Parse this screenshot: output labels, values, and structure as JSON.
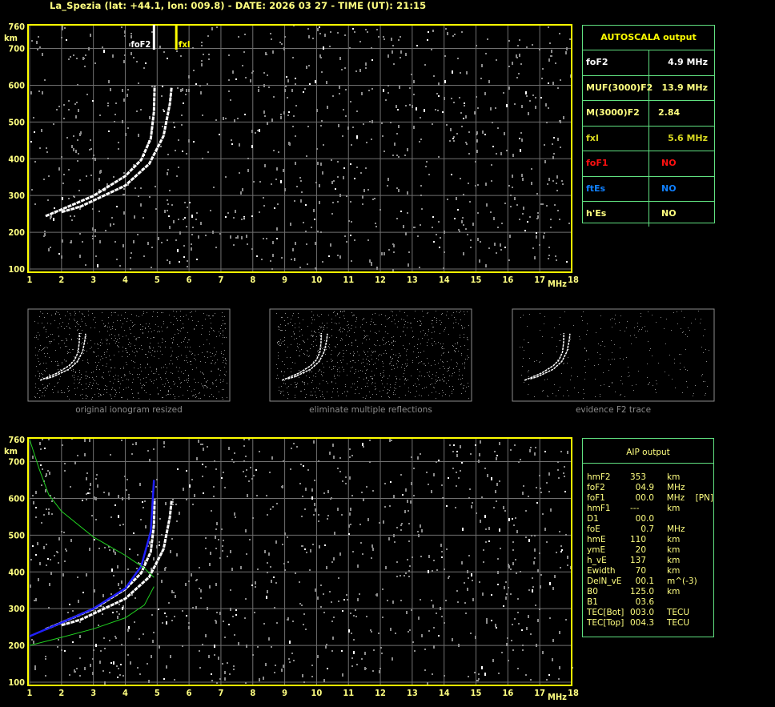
{
  "header": {
    "title": "La_Spezia (lat: +44.1, lon: 009.8) - DATE: 2026 03 27 - TIME (UT): 21:15"
  },
  "axes": {
    "x_unit": "MHz",
    "y_unit": "km",
    "x_ticks": [
      "1",
      "2",
      "3",
      "4",
      "5",
      "6",
      "7",
      "8",
      "9",
      "10",
      "11",
      "12",
      "13",
      "14",
      "15",
      "16",
      "17",
      "18"
    ],
    "y_ticks": [
      "760",
      "700",
      "600",
      "500",
      "400",
      "300",
      "200",
      "100"
    ],
    "x_range": [
      1,
      18
    ],
    "y_range": [
      100,
      760
    ]
  },
  "top_ionogram": {
    "markers": [
      {
        "label": "foF2",
        "freq": 4.9,
        "color": "#ffffff"
      },
      {
        "label": "fxI",
        "freq": 5.6,
        "color": "#ffff00"
      }
    ],
    "o_trace": [
      [
        1.5,
        244
      ],
      [
        2.0,
        262
      ],
      [
        3.0,
        299
      ],
      [
        4.0,
        353
      ],
      [
        4.5,
        397
      ],
      [
        4.8,
        455
      ],
      [
        4.9,
        528
      ],
      [
        4.92,
        598
      ]
    ],
    "x_trace": [
      [
        2.0,
        255
      ],
      [
        2.6,
        270
      ],
      [
        4.0,
        327
      ],
      [
        4.75,
        386
      ],
      [
        5.2,
        462
      ],
      [
        5.4,
        550
      ],
      [
        5.45,
        593
      ]
    ]
  },
  "autoscala": {
    "title": "AUTOSCALA output",
    "rows": [
      {
        "key": "foF2",
        "value": "4.9 MHz",
        "color": "#ffffff"
      },
      {
        "key": "MUF(3000)F2",
        "value": "13.9 MHz",
        "color": "#ffff80"
      },
      {
        "key": "M(3000)F2",
        "value": "2.84",
        "color": "#ffff80"
      },
      {
        "key": "fxI",
        "value": "5.6 MHz",
        "color": "#d8d820"
      },
      {
        "key": "foF1",
        "value": "NO",
        "color": "#ff1010"
      },
      {
        "key": "ftEs",
        "value": "NO",
        "color": "#1080ff"
      },
      {
        "key": "h'Es",
        "value": "NO",
        "color": "#ffff80"
      }
    ]
  },
  "thumbnails": [
    {
      "caption": "original ionogram resized"
    },
    {
      "caption": "eliminate multiple reflections"
    },
    {
      "caption": "evidence F2 trace"
    }
  ],
  "bottom_ionogram": {
    "blue_trace": [
      [
        1.0,
        225
      ],
      [
        2.0,
        262
      ],
      [
        3.0,
        300
      ],
      [
        4.0,
        355
      ],
      [
        4.5,
        415
      ],
      [
        4.8,
        510
      ],
      [
        4.9,
        650
      ]
    ],
    "green_profile_upper": [
      [
        1.0,
        760
      ],
      [
        1.3,
        680
      ],
      [
        1.6,
        610
      ],
      [
        2.0,
        565
      ],
      [
        3.0,
        495
      ],
      [
        4.0,
        445
      ],
      [
        4.6,
        410
      ],
      [
        4.9,
        385
      ]
    ],
    "green_profile_lower": [
      [
        1.0,
        200
      ],
      [
        2.0,
        222
      ],
      [
        3.0,
        245
      ],
      [
        4.0,
        275
      ],
      [
        4.6,
        310
      ],
      [
        4.9,
        360
      ]
    ]
  },
  "aip": {
    "title": "AIP output",
    "rows": [
      {
        "name": "hmF2",
        "value": "353",
        "unit": "km",
        "extra": ""
      },
      {
        "name": "foF2",
        "value": "  04.9",
        "unit": "MHz",
        "extra": ""
      },
      {
        "name": "foF1",
        "value": "  00.0",
        "unit": "MHz",
        "extra": "[PN]"
      },
      {
        "name": "hmF1",
        "value": "---",
        "unit": "km",
        "extra": ""
      },
      {
        "name": "D1",
        "value": "  00.0",
        "unit": "",
        "extra": ""
      },
      {
        "name": "foE",
        "value": "    0.7",
        "unit": "MHz",
        "extra": ""
      },
      {
        "name": "hmE",
        "value": "110",
        "unit": "km",
        "extra": ""
      },
      {
        "name": "ymE",
        "value": "  20",
        "unit": "km",
        "extra": ""
      },
      {
        "name": "h_vE",
        "value": "137",
        "unit": "km",
        "extra": ""
      },
      {
        "name": "Ewidth",
        "value": "  70",
        "unit": "km",
        "extra": ""
      },
      {
        "name": "DelN_vE",
        "value": "  00.1",
        "unit": "m^(-3)",
        "extra": ""
      },
      {
        "name": "B0",
        "value": "125.0",
        "unit": "km",
        "extra": ""
      },
      {
        "name": "B1",
        "value": "  03.6",
        "unit": "",
        "extra": ""
      },
      {
        "name": "TEC[Bot]",
        "value": "003.0",
        "unit": "TECU",
        "extra": ""
      },
      {
        "name": "TEC[Top]",
        "value": "004.3",
        "unit": "TECU",
        "extra": ""
      }
    ]
  },
  "colors": {
    "axis": "#ffff00",
    "grid": "#707070",
    "noise": "#8c8c8c",
    "trace": "#ffffff",
    "blue": "#2020ff",
    "green": "#20d020",
    "table_border": "#60e080"
  }
}
